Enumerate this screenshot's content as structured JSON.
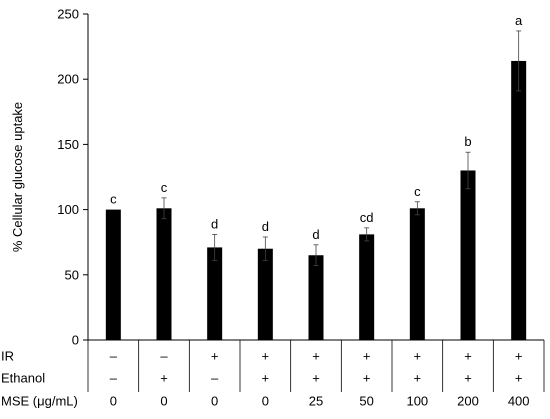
{
  "chart_data": {
    "type": "bar",
    "ylabel": "% Cellular glucose uptake",
    "ylim": [
      0,
      250
    ],
    "yticks": [
      0,
      50,
      100,
      150,
      200,
      250
    ],
    "values": [
      100,
      101,
      71,
      70,
      65,
      81,
      101,
      130,
      214
    ],
    "errors": [
      0,
      8,
      10,
      9,
      8,
      5,
      5,
      14,
      23
    ],
    "significance": [
      "c",
      "c",
      "d",
      "d",
      "d",
      "cd",
      "c",
      "b",
      "a"
    ],
    "bar_color": "#000000",
    "grid": false,
    "treatment_rows": [
      {
        "label": "IR",
        "values": [
          "–",
          "–",
          "+",
          "+",
          "+",
          "+",
          "+",
          "+",
          "+"
        ]
      },
      {
        "label": "Ethanol",
        "values": [
          "–",
          "+",
          "–",
          "+",
          "+",
          "+",
          "+",
          "+",
          "+"
        ]
      },
      {
        "label": "MSE (μg/mL)",
        "values": [
          "0",
          "0",
          "0",
          "0",
          "25",
          "50",
          "100",
          "200",
          "400"
        ]
      }
    ]
  }
}
